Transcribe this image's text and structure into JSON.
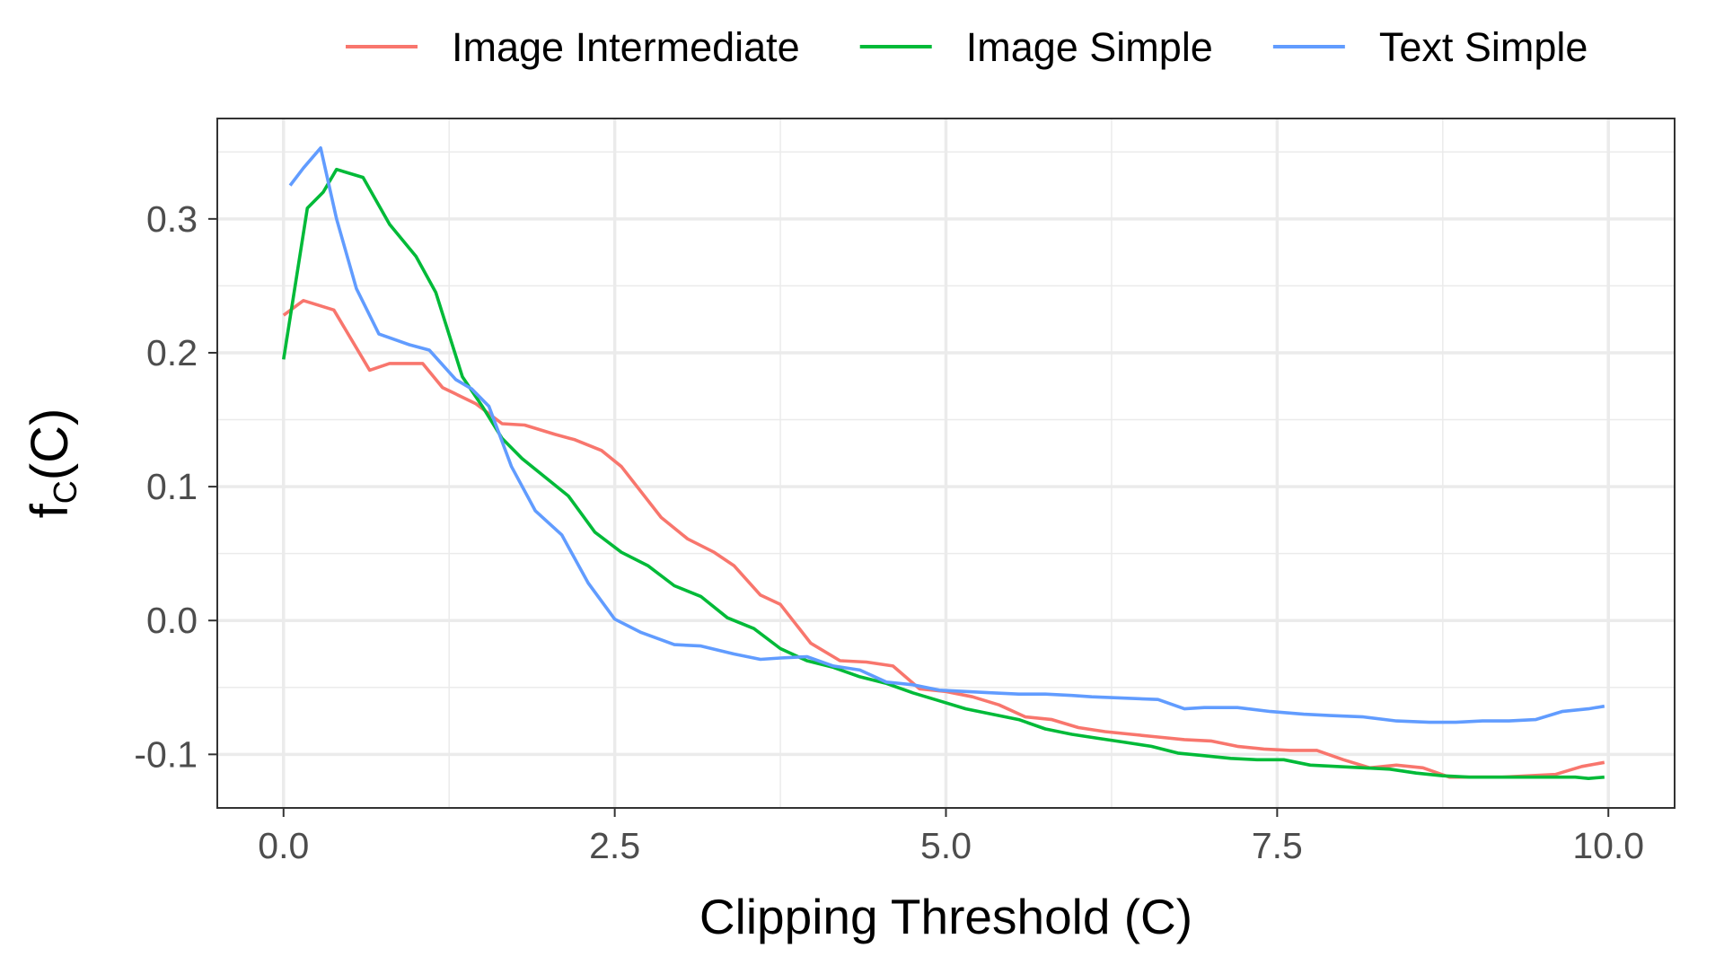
{
  "chart_data": {
    "type": "line",
    "xlabel": "Clipping Threshold (C)",
    "ylabel": {
      "base": "f",
      "subscript": "C",
      "suffix": "(C)"
    },
    "xlim": [
      -0.5,
      10.5
    ],
    "ylim": [
      -0.14,
      0.375
    ],
    "x_ticks": [
      0.0,
      2.5,
      5.0,
      7.5,
      10.0
    ],
    "x_tick_labels": [
      "0.0",
      "2.5",
      "5.0",
      "7.5",
      "10.0"
    ],
    "y_ticks": [
      -0.1,
      0.0,
      0.1,
      0.2,
      0.3
    ],
    "y_tick_labels": [
      "-0.1",
      "0.0",
      "0.1",
      "0.2",
      "0.3"
    ],
    "grid": true,
    "legend_position": "top",
    "series": [
      {
        "name": "Image Intermediate",
        "color": "#F8766D",
        "points": [
          [
            0.0,
            0.228
          ],
          [
            0.15,
            0.239
          ],
          [
            0.38,
            0.232
          ],
          [
            0.65,
            0.187
          ],
          [
            0.8,
            0.192
          ],
          [
            1.05,
            0.192
          ],
          [
            1.2,
            0.174
          ],
          [
            1.45,
            0.162
          ],
          [
            1.65,
            0.147
          ],
          [
            1.82,
            0.146
          ],
          [
            2.05,
            0.139
          ],
          [
            2.2,
            0.135
          ],
          [
            2.4,
            0.127
          ],
          [
            2.55,
            0.115
          ],
          [
            2.85,
            0.077
          ],
          [
            3.05,
            0.061
          ],
          [
            3.25,
            0.051
          ],
          [
            3.4,
            0.041
          ],
          [
            3.6,
            0.019
          ],
          [
            3.75,
            0.012
          ],
          [
            3.98,
            -0.017
          ],
          [
            4.2,
            -0.03
          ],
          [
            4.4,
            -0.031
          ],
          [
            4.6,
            -0.034
          ],
          [
            4.8,
            -0.051
          ],
          [
            5.0,
            -0.053
          ],
          [
            5.2,
            -0.057
          ],
          [
            5.4,
            -0.063
          ],
          [
            5.6,
            -0.072
          ],
          [
            5.8,
            -0.074
          ],
          [
            6.0,
            -0.08
          ],
          [
            6.2,
            -0.083
          ],
          [
            6.4,
            -0.085
          ],
          [
            6.6,
            -0.087
          ],
          [
            6.8,
            -0.089
          ],
          [
            7.0,
            -0.09
          ],
          [
            7.2,
            -0.094
          ],
          [
            7.4,
            -0.096
          ],
          [
            7.6,
            -0.097
          ],
          [
            7.8,
            -0.097
          ],
          [
            8.0,
            -0.104
          ],
          [
            8.2,
            -0.11
          ],
          [
            8.4,
            -0.108
          ],
          [
            8.6,
            -0.11
          ],
          [
            8.8,
            -0.117
          ],
          [
            9.0,
            -0.117
          ],
          [
            9.2,
            -0.117
          ],
          [
            9.4,
            -0.116
          ],
          [
            9.6,
            -0.115
          ],
          [
            9.8,
            -0.109
          ],
          [
            9.97,
            -0.106
          ]
        ]
      },
      {
        "name": "Image Simple",
        "color": "#00BA38",
        "points": [
          [
            0.0,
            0.195
          ],
          [
            0.18,
            0.308
          ],
          [
            0.3,
            0.32
          ],
          [
            0.4,
            0.337
          ],
          [
            0.6,
            0.331
          ],
          [
            0.8,
            0.296
          ],
          [
            1.0,
            0.272
          ],
          [
            1.15,
            0.245
          ],
          [
            1.35,
            0.182
          ],
          [
            1.5,
            0.16
          ],
          [
            1.65,
            0.136
          ],
          [
            1.8,
            0.121
          ],
          [
            2.0,
            0.105
          ],
          [
            2.15,
            0.093
          ],
          [
            2.35,
            0.066
          ],
          [
            2.55,
            0.051
          ],
          [
            2.75,
            0.041
          ],
          [
            2.95,
            0.026
          ],
          [
            3.15,
            0.018
          ],
          [
            3.35,
            0.002
          ],
          [
            3.55,
            -0.006
          ],
          [
            3.75,
            -0.021
          ],
          [
            3.95,
            -0.03
          ],
          [
            4.15,
            -0.035
          ],
          [
            4.35,
            -0.042
          ],
          [
            4.55,
            -0.047
          ],
          [
            4.75,
            -0.054
          ],
          [
            4.95,
            -0.06
          ],
          [
            5.15,
            -0.066
          ],
          [
            5.35,
            -0.07
          ],
          [
            5.55,
            -0.074
          ],
          [
            5.75,
            -0.081
          ],
          [
            5.95,
            -0.085
          ],
          [
            6.15,
            -0.088
          ],
          [
            6.35,
            -0.091
          ],
          [
            6.55,
            -0.094
          ],
          [
            6.75,
            -0.099
          ],
          [
            6.95,
            -0.101
          ],
          [
            7.15,
            -0.103
          ],
          [
            7.35,
            -0.104
          ],
          [
            7.55,
            -0.104
          ],
          [
            7.75,
            -0.108
          ],
          [
            7.95,
            -0.109
          ],
          [
            8.15,
            -0.11
          ],
          [
            8.35,
            -0.111
          ],
          [
            8.55,
            -0.114
          ],
          [
            8.75,
            -0.116
          ],
          [
            8.95,
            -0.117
          ],
          [
            9.15,
            -0.117
          ],
          [
            9.35,
            -0.117
          ],
          [
            9.55,
            -0.117
          ],
          [
            9.75,
            -0.117
          ],
          [
            9.85,
            -0.118
          ],
          [
            9.97,
            -0.117
          ]
        ]
      },
      {
        "name": "Text Simple",
        "color": "#619CFF",
        "points": [
          [
            0.05,
            0.325
          ],
          [
            0.15,
            0.338
          ],
          [
            0.28,
            0.353
          ],
          [
            0.4,
            0.3
          ],
          [
            0.55,
            0.248
          ],
          [
            0.72,
            0.214
          ],
          [
            0.95,
            0.206
          ],
          [
            1.1,
            0.202
          ],
          [
            1.3,
            0.18
          ],
          [
            1.42,
            0.173
          ],
          [
            1.55,
            0.16
          ],
          [
            1.72,
            0.115
          ],
          [
            1.9,
            0.082
          ],
          [
            2.1,
            0.064
          ],
          [
            2.3,
            0.028
          ],
          [
            2.5,
            0.001
          ],
          [
            2.7,
            -0.009
          ],
          [
            2.95,
            -0.018
          ],
          [
            3.15,
            -0.019
          ],
          [
            3.4,
            -0.025
          ],
          [
            3.6,
            -0.029
          ],
          [
            3.75,
            -0.028
          ],
          [
            3.95,
            -0.027
          ],
          [
            4.15,
            -0.034
          ],
          [
            4.35,
            -0.037
          ],
          [
            4.55,
            -0.046
          ],
          [
            4.75,
            -0.048
          ],
          [
            4.95,
            -0.052
          ],
          [
            5.15,
            -0.053
          ],
          [
            5.35,
            -0.054
          ],
          [
            5.55,
            -0.055
          ],
          [
            5.75,
            -0.055
          ],
          [
            5.95,
            -0.056
          ],
          [
            6.1,
            -0.057
          ],
          [
            6.35,
            -0.058
          ],
          [
            6.6,
            -0.059
          ],
          [
            6.8,
            -0.066
          ],
          [
            6.95,
            -0.065
          ],
          [
            7.2,
            -0.065
          ],
          [
            7.45,
            -0.068
          ],
          [
            7.7,
            -0.07
          ],
          [
            7.9,
            -0.071
          ],
          [
            8.15,
            -0.072
          ],
          [
            8.4,
            -0.075
          ],
          [
            8.65,
            -0.076
          ],
          [
            8.85,
            -0.076
          ],
          [
            9.05,
            -0.075
          ],
          [
            9.25,
            -0.075
          ],
          [
            9.45,
            -0.074
          ],
          [
            9.65,
            -0.068
          ],
          [
            9.85,
            -0.066
          ],
          [
            9.97,
            -0.064
          ]
        ]
      }
    ]
  }
}
